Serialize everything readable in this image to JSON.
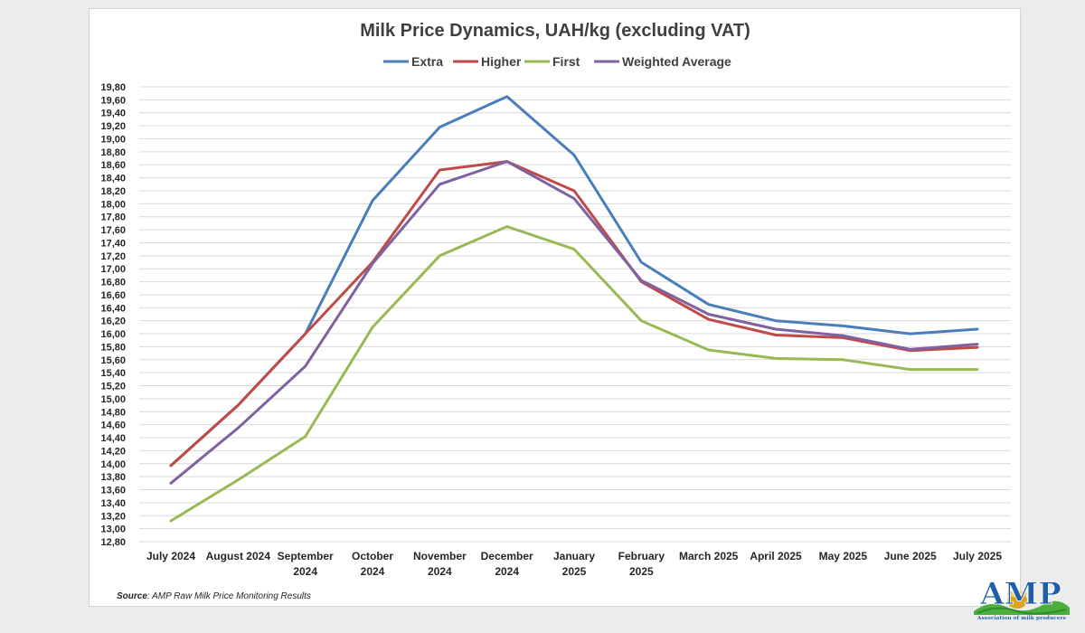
{
  "chart_data": {
    "type": "line",
    "title": "Milk Price Dynamics, UAH/kg (excluding VAT)",
    "categories": [
      [
        "July 2024"
      ],
      [
        "August 2024"
      ],
      [
        "September",
        "2024"
      ],
      [
        "October",
        "2024"
      ],
      [
        "November",
        "2024"
      ],
      [
        "December",
        "2024"
      ],
      [
        "January",
        "2025"
      ],
      [
        "February",
        "2025"
      ],
      [
        "March 2025"
      ],
      [
        "April 2025"
      ],
      [
        "May 2025"
      ],
      [
        "June 2025"
      ],
      [
        "July 2025"
      ]
    ],
    "series": [
      {
        "name": "Extra",
        "color": "#4a7ebb",
        "values": [
          13.97,
          14.9,
          16.0,
          18.05,
          19.18,
          19.65,
          18.75,
          17.1,
          16.45,
          16.2,
          16.12,
          16.0,
          16.07
        ]
      },
      {
        "name": "Higher",
        "color": "#be4b48",
        "values": [
          13.97,
          14.9,
          16.0,
          17.1,
          18.52,
          18.65,
          18.2,
          16.8,
          16.22,
          15.98,
          15.94,
          15.74,
          15.79
        ]
      },
      {
        "name": "First",
        "color": "#98b954",
        "values": [
          13.12,
          13.75,
          14.42,
          16.1,
          17.2,
          17.65,
          17.3,
          16.2,
          15.75,
          15.62,
          15.6,
          15.45,
          15.45
        ]
      },
      {
        "name": "Weighted Average",
        "color": "#7e62a1",
        "values": [
          13.7,
          14.55,
          15.5,
          17.08,
          18.3,
          18.65,
          18.08,
          16.82,
          16.3,
          16.07,
          15.97,
          15.76,
          15.84
        ]
      }
    ],
    "ylim": [
      12.8,
      19.8
    ],
    "y_step": 0.2,
    "y_decimal_separator": ",",
    "grid": true,
    "legend_position": "top-center",
    "xlabel": "",
    "ylabel": ""
  },
  "source_label": "Source",
  "source_text": ": AMP Raw Milk Price Monitoring Results",
  "logo": {
    "wordmark": "AMP",
    "subtitle": "Association of milk producers"
  },
  "colors": {
    "gridline": "#d9d9d9",
    "text": "#262626",
    "logo_blue": "#1f5fa8",
    "logo_green": "#4caf3c",
    "logo_gold": "#d9a520"
  }
}
